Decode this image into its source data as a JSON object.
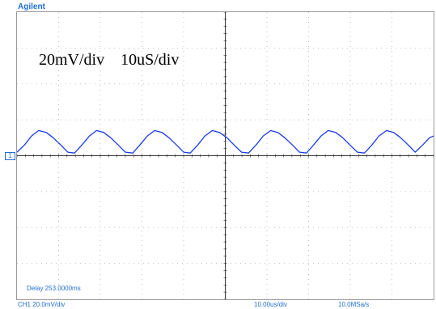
{
  "header": {
    "brand": "Agilent"
  },
  "annotation": "20mV/div    10uS/div",
  "channel_marker": "1",
  "display": {
    "delay": "Delay 253.0000ms"
  },
  "status_bar": {
    "channel_scale": "CH1 20.0mV/div",
    "timebase": "10.00us/div",
    "sample_rate": "10.0MSa/s"
  },
  "colors": {
    "trace": "#1a3be6",
    "accent": "#1f6fd6",
    "grid": "#b0b0b0",
    "axis": "#333333"
  },
  "chart_data": {
    "type": "line",
    "title": "",
    "xlabel": "",
    "ylabel": "",
    "x_unit": "us",
    "y_unit": "mV",
    "xlim": [
      -50,
      50
    ],
    "ylim": [
      -80,
      80
    ],
    "grid": true,
    "series": [
      {
        "points": [
          [
            -50,
            2
          ],
          [
            -48.2,
            6
          ],
          [
            -46.5,
            11
          ],
          [
            -44.8,
            14
          ],
          [
            -43,
            13
          ],
          [
            -41.3,
            10
          ],
          [
            -39.5,
            6
          ],
          [
            -37.8,
            2
          ],
          [
            -36.2,
            1.5
          ],
          [
            -34.4,
            6
          ],
          [
            -32.6,
            11
          ],
          [
            -30.9,
            14
          ],
          [
            -29.2,
            13
          ],
          [
            -27.5,
            10
          ],
          [
            -25.7,
            6
          ],
          [
            -24,
            2
          ],
          [
            -22.2,
            1.5
          ],
          [
            -20.5,
            6
          ],
          [
            -18.7,
            11
          ],
          [
            -17,
            14
          ],
          [
            -15.2,
            13
          ],
          [
            -13.5,
            10
          ],
          [
            -11.7,
            6
          ],
          [
            -10,
            2
          ],
          [
            -8.4,
            1.5
          ],
          [
            -6.6,
            6
          ],
          [
            -4.9,
            11
          ],
          [
            -3.1,
            14
          ],
          [
            -1.4,
            13
          ],
          [
            0.4,
            10
          ],
          [
            2.1,
            6
          ],
          [
            3.9,
            2
          ],
          [
            5.6,
            1.5
          ],
          [
            7.4,
            6
          ],
          [
            9.1,
            11
          ],
          [
            10.9,
            14
          ],
          [
            12.6,
            13
          ],
          [
            14.3,
            10
          ],
          [
            16.1,
            6
          ],
          [
            17.8,
            2
          ],
          [
            19.5,
            1.5
          ],
          [
            21.2,
            6
          ],
          [
            23,
            11
          ],
          [
            24.7,
            14
          ],
          [
            26.5,
            13
          ],
          [
            28.2,
            10
          ],
          [
            29.9,
            6
          ],
          [
            31.7,
            2
          ],
          [
            33.4,
            1.5
          ],
          [
            35.2,
            6
          ],
          [
            36.9,
            11
          ],
          [
            38.7,
            14
          ],
          [
            40.4,
            13
          ],
          [
            42.1,
            10
          ],
          [
            43.9,
            6
          ],
          [
            45.6,
            2
          ],
          [
            47.4,
            6
          ],
          [
            49,
            10
          ],
          [
            50,
            11
          ]
        ]
      }
    ]
  }
}
